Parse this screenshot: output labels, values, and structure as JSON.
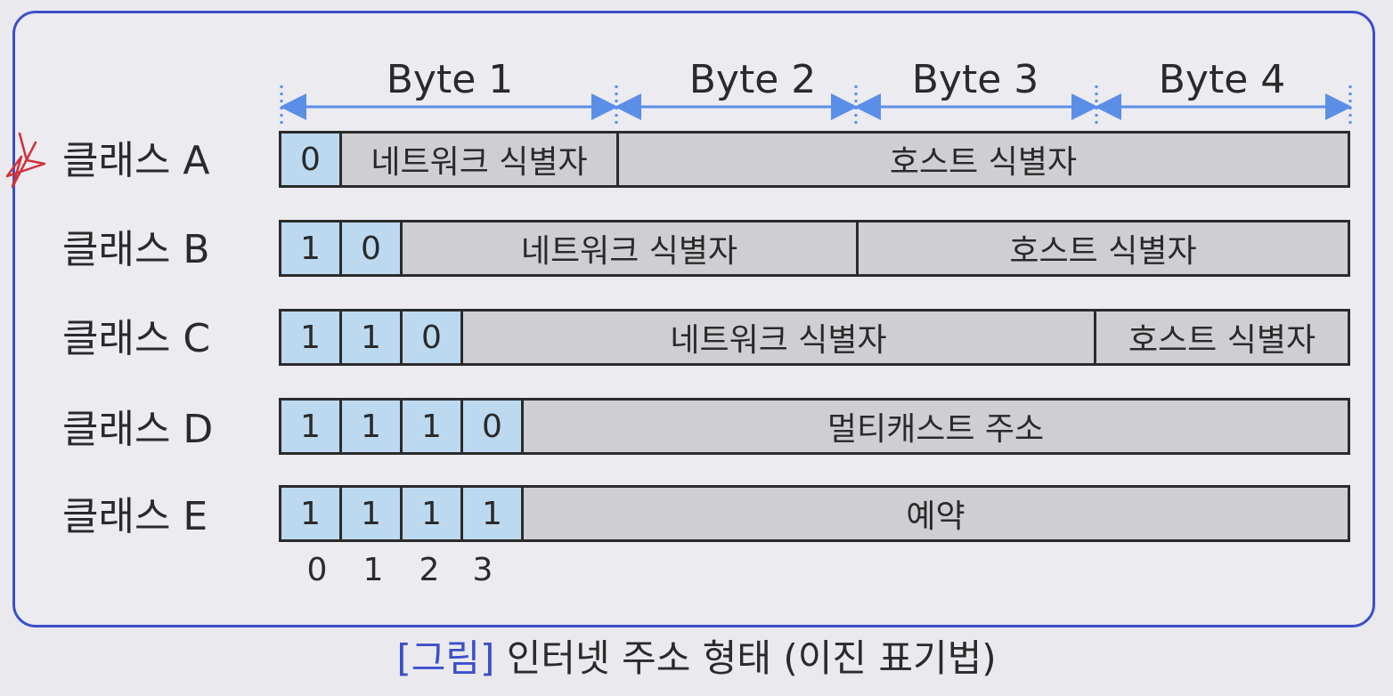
{
  "bytes": [
    "Byte 1",
    "Byte 2",
    "Byte 3",
    "Byte 4"
  ],
  "classes": [
    {
      "label": "클래스 A",
      "bits": [
        "0"
      ],
      "fields": [
        "네트워크 식별자",
        "호스트 식별자"
      ]
    },
    {
      "label": "클래스 B",
      "bits": [
        "1",
        "0"
      ],
      "fields": [
        "네트워크 식별자",
        "호스트 식별자"
      ]
    },
    {
      "label": "클래스 C",
      "bits": [
        "1",
        "1",
        "0"
      ],
      "fields": [
        "네트워크 식별자",
        "호스트 식별자"
      ]
    },
    {
      "label": "클래스 D",
      "bits": [
        "1",
        "1",
        "1",
        "0"
      ],
      "fields": [
        "멀티캐스트 주소"
      ]
    },
    {
      "label": "클래스 E",
      "bits": [
        "1",
        "1",
        "1",
        "1"
      ],
      "fields": [
        "예약"
      ]
    }
  ],
  "bit_positions": [
    "0",
    "1",
    "2",
    "3"
  ],
  "caption": {
    "tag": "[그림]",
    "text": "인터넷 주소 형태 (이진 표기법)"
  },
  "colors": {
    "accent": "#3c4fc8",
    "bit_fill": "#bcd9f0",
    "field_fill": "#cfcfd3",
    "arrow": "#5b8ee6",
    "star": "#d0303a"
  }
}
